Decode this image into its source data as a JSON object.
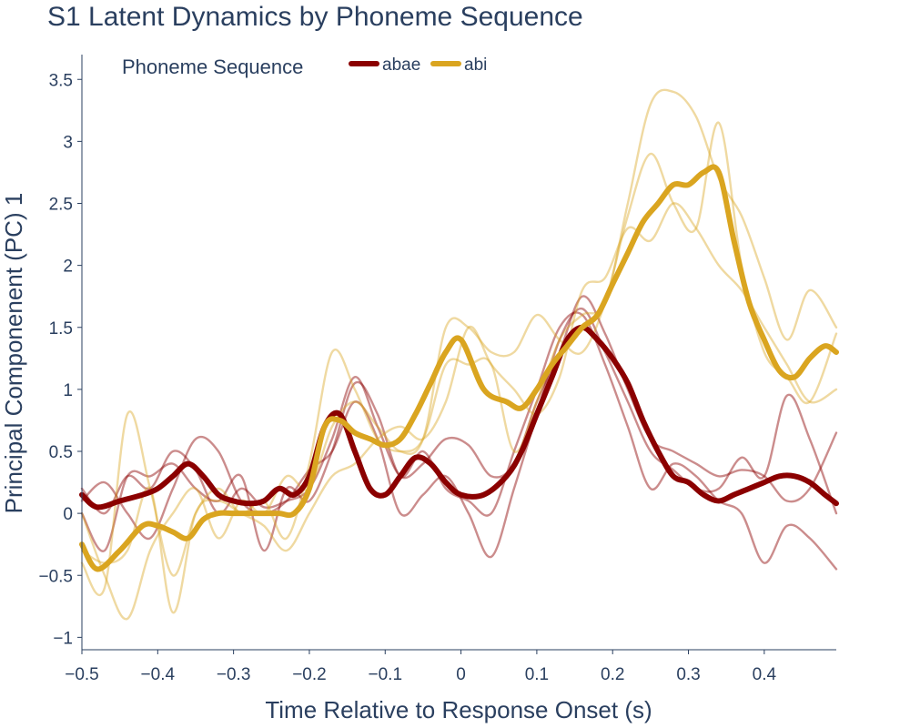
{
  "chart_data": {
    "type": "line",
    "title": "S1 Latent Dynamics by Phoneme Sequence",
    "xlabel": "Time Relative to Response Onset (s)",
    "ylabel": "Principal Componenent (PC) 1",
    "xlim": [
      -0.5,
      0.495
    ],
    "ylim": [
      -1.1,
      3.7
    ],
    "xticks": [
      -0.5,
      -0.4,
      -0.3,
      -0.2,
      -0.1,
      0,
      0.1,
      0.2,
      0.3,
      0.4
    ],
    "xtick_labels": [
      "−0.5",
      "−0.4",
      "−0.3",
      "−0.2",
      "−0.1",
      "0",
      "0.1",
      "0.2",
      "0.3",
      "0.4"
    ],
    "yticks": [
      -1,
      -0.5,
      0,
      0.5,
      1,
      1.5,
      2,
      2.5,
      3,
      3.5
    ],
    "ytick_labels": [
      "−1",
      "−0.5",
      "0",
      "0.5",
      "1",
      "1.5",
      "2",
      "2.5",
      "3",
      "3.5"
    ],
    "grid": false,
    "legend": {
      "title": "Phoneme Sequence",
      "placement": "top-left",
      "orientation": "horizontal"
    },
    "series": [
      {
        "name": "abae",
        "color": "#8b0000",
        "role": "mean",
        "x": [
          -0.5,
          -0.48,
          -0.45,
          -0.42,
          -0.4,
          -0.38,
          -0.36,
          -0.34,
          -0.32,
          -0.3,
          -0.28,
          -0.26,
          -0.24,
          -0.22,
          -0.2,
          -0.18,
          -0.16,
          -0.14,
          -0.12,
          -0.1,
          -0.08,
          -0.06,
          -0.04,
          -0.02,
          0,
          0.03,
          0.06,
          0.08,
          0.1,
          0.12,
          0.14,
          0.16,
          0.18,
          0.2,
          0.22,
          0.24,
          0.26,
          0.28,
          0.3,
          0.32,
          0.34,
          0.36,
          0.38,
          0.4,
          0.42,
          0.44,
          0.46,
          0.48,
          0.495
        ],
        "y": [
          0.15,
          0.05,
          0.1,
          0.15,
          0.2,
          0.3,
          0.4,
          0.3,
          0.15,
          0.1,
          0.08,
          0.1,
          0.2,
          0.15,
          0.3,
          0.7,
          0.8,
          0.5,
          0.2,
          0.15,
          0.3,
          0.45,
          0.4,
          0.25,
          0.15,
          0.15,
          0.3,
          0.5,
          0.8,
          1.1,
          1.4,
          1.5,
          1.4,
          1.25,
          1.05,
          0.75,
          0.5,
          0.3,
          0.25,
          0.15,
          0.1,
          0.15,
          0.2,
          0.25,
          0.3,
          0.3,
          0.25,
          0.15,
          0.08
        ]
      },
      {
        "name": "abi",
        "color": "#daa520",
        "role": "mean",
        "x": [
          -0.5,
          -0.48,
          -0.45,
          -0.42,
          -0.4,
          -0.38,
          -0.36,
          -0.34,
          -0.32,
          -0.3,
          -0.28,
          -0.26,
          -0.24,
          -0.22,
          -0.2,
          -0.18,
          -0.16,
          -0.14,
          -0.12,
          -0.1,
          -0.08,
          -0.06,
          -0.04,
          -0.02,
          0,
          0.03,
          0.06,
          0.08,
          0.1,
          0.12,
          0.14,
          0.16,
          0.18,
          0.2,
          0.22,
          0.24,
          0.26,
          0.28,
          0.3,
          0.32,
          0.34,
          0.36,
          0.38,
          0.4,
          0.42,
          0.44,
          0.46,
          0.48,
          0.495
        ],
        "y": [
          -0.25,
          -0.45,
          -0.3,
          -0.1,
          -0.1,
          -0.15,
          -0.2,
          -0.05,
          0.0,
          0.0,
          0.0,
          0.0,
          0.0,
          0.0,
          0.2,
          0.7,
          0.75,
          0.65,
          0.6,
          0.55,
          0.6,
          0.8,
          1.05,
          1.3,
          1.4,
          1.0,
          0.9,
          0.85,
          1.0,
          1.2,
          1.35,
          1.5,
          1.6,
          1.85,
          2.1,
          2.35,
          2.5,
          2.65,
          2.65,
          2.75,
          2.75,
          2.2,
          1.7,
          1.4,
          1.15,
          1.1,
          1.25,
          1.35,
          1.3
        ]
      },
      {
        "name": "",
        "color": "#8b0000",
        "role": "trial",
        "x": [
          -0.5,
          -0.47,
          -0.44,
          -0.41,
          -0.38,
          -0.35,
          -0.32,
          -0.29,
          -0.26,
          -0.23,
          -0.2,
          -0.17,
          -0.14,
          -0.11,
          -0.08,
          -0.05,
          -0.02,
          0.01,
          0.04,
          0.07,
          0.1,
          0.13,
          0.16,
          0.19,
          0.22,
          0.25,
          0.28,
          0.31,
          0.34,
          0.37,
          0.4,
          0.43,
          0.46,
          0.495
        ],
        "y": [
          0.2,
          0.0,
          0.3,
          0.2,
          0.5,
          0.35,
          0.0,
          0.2,
          0.05,
          0.1,
          0.2,
          0.6,
          1.1,
          0.7,
          0.3,
          0.4,
          0.6,
          0.55,
          0.3,
          0.4,
          0.9,
          1.3,
          1.75,
          1.45,
          1.0,
          0.6,
          0.5,
          0.4,
          0.3,
          0.35,
          0.3,
          0.1,
          0.2,
          0.65
        ]
      },
      {
        "name": "",
        "color": "#8b0000",
        "role": "trial",
        "x": [
          -0.5,
          -0.47,
          -0.44,
          -0.41,
          -0.38,
          -0.35,
          -0.32,
          -0.29,
          -0.26,
          -0.23,
          -0.2,
          -0.17,
          -0.14,
          -0.11,
          -0.08,
          -0.05,
          -0.02,
          0.01,
          0.04,
          0.07,
          0.1,
          0.13,
          0.16,
          0.19,
          0.22,
          0.25,
          0.28,
          0.31,
          0.34,
          0.37,
          0.4,
          0.43,
          0.46,
          0.495
        ],
        "y": [
          0.1,
          0.25,
          0.0,
          -0.2,
          0.2,
          0.6,
          0.5,
          0.1,
          0.0,
          0.1,
          0.35,
          0.5,
          0.9,
          0.6,
          0.0,
          0.15,
          0.3,
          0.0,
          -0.35,
          0.2,
          0.8,
          1.4,
          1.65,
          1.3,
          0.9,
          0.5,
          0.35,
          0.2,
          0.2,
          0.45,
          0.3,
          0.95,
          0.6,
          0.0
        ]
      },
      {
        "name": "",
        "color": "#8b0000",
        "role": "trial",
        "x": [
          -0.5,
          -0.47,
          -0.44,
          -0.41,
          -0.38,
          -0.35,
          -0.32,
          -0.29,
          -0.26,
          -0.23,
          -0.2,
          -0.17,
          -0.14,
          -0.11,
          -0.08,
          -0.05,
          -0.02,
          0.01,
          0.04,
          0.07,
          0.1,
          0.13,
          0.16,
          0.19,
          0.22,
          0.25,
          0.28,
          0.31,
          0.34,
          0.37,
          0.4,
          0.43,
          0.46,
          0.495
        ],
        "y": [
          0.0,
          -0.3,
          0.3,
          0.3,
          0.4,
          0.2,
          0.1,
          0.3,
          -0.3,
          0.2,
          0.1,
          0.5,
          1.05,
          0.8,
          0.3,
          0.5,
          0.2,
          0.1,
          0.0,
          0.5,
          1.0,
          1.5,
          1.6,
          1.2,
          0.7,
          0.2,
          0.4,
          0.3,
          0.1,
          0.0,
          -0.4,
          -0.1,
          -0.2,
          -0.45
        ]
      },
      {
        "name": "",
        "color": "#daa520",
        "role": "trial",
        "x": [
          -0.5,
          -0.47,
          -0.44,
          -0.41,
          -0.38,
          -0.35,
          -0.32,
          -0.29,
          -0.26,
          -0.23,
          -0.2,
          -0.17,
          -0.14,
          -0.11,
          -0.08,
          -0.05,
          -0.02,
          0.01,
          0.04,
          0.07,
          0.1,
          0.13,
          0.16,
          0.19,
          0.22,
          0.25,
          0.28,
          0.31,
          0.34,
          0.37,
          0.4,
          0.43,
          0.46,
          0.495
        ],
        "y": [
          -0.4,
          -0.6,
          0.8,
          0.2,
          -0.5,
          0.0,
          0.2,
          0.0,
          0.1,
          -0.2,
          0.4,
          1.3,
          1.0,
          0.6,
          0.5,
          0.6,
          1.2,
          1.2,
          1.2,
          0.5,
          0.9,
          1.4,
          1.6,
          1.7,
          2.5,
          3.3,
          3.4,
          3.2,
          2.7,
          2.4,
          1.9,
          1.4,
          1.8,
          1.5
        ]
      },
      {
        "name": "",
        "color": "#daa520",
        "role": "trial",
        "x": [
          -0.5,
          -0.47,
          -0.44,
          -0.41,
          -0.38,
          -0.35,
          -0.32,
          -0.29,
          -0.26,
          -0.23,
          -0.2,
          -0.17,
          -0.14,
          -0.11,
          -0.08,
          -0.05,
          -0.02,
          0.01,
          0.04,
          0.07,
          0.1,
          0.13,
          0.16,
          0.19,
          0.22,
          0.25,
          0.28,
          0.31,
          0.34,
          0.37,
          0.4,
          0.43,
          0.46,
          0.495
        ],
        "y": [
          -0.3,
          -0.4,
          -0.3,
          0.2,
          -0.8,
          0.0,
          0.1,
          0.0,
          -0.1,
          -0.3,
          0.0,
          0.3,
          0.4,
          0.6,
          0.7,
          0.6,
          0.9,
          1.5,
          1.2,
          1.0,
          0.8,
          1.1,
          1.8,
          1.9,
          2.3,
          2.2,
          2.5,
          2.3,
          2.0,
          1.8,
          1.5,
          1.2,
          0.9,
          1.0
        ]
      },
      {
        "name": "",
        "color": "#daa520",
        "role": "trial",
        "x": [
          -0.5,
          -0.47,
          -0.44,
          -0.41,
          -0.38,
          -0.35,
          -0.32,
          -0.29,
          -0.26,
          -0.23,
          -0.2,
          -0.17,
          -0.14,
          -0.11,
          -0.08,
          -0.05,
          -0.02,
          0.01,
          0.04,
          0.07,
          0.1,
          0.13,
          0.16,
          0.19,
          0.22,
          0.25,
          0.28,
          0.31,
          0.34,
          0.37,
          0.4,
          0.43,
          0.46,
          0.495
        ],
        "y": [
          0.0,
          -0.5,
          -0.85,
          -0.3,
          0.0,
          0.2,
          -0.2,
          0.1,
          0.0,
          0.3,
          0.2,
          0.7,
          0.9,
          0.7,
          0.5,
          0.6,
          1.5,
          1.5,
          1.3,
          1.3,
          1.6,
          1.4,
          1.3,
          1.7,
          2.4,
          2.9,
          2.5,
          2.3,
          3.15,
          2.0,
          1.3,
          1.1,
          0.9,
          1.45
        ]
      }
    ]
  }
}
